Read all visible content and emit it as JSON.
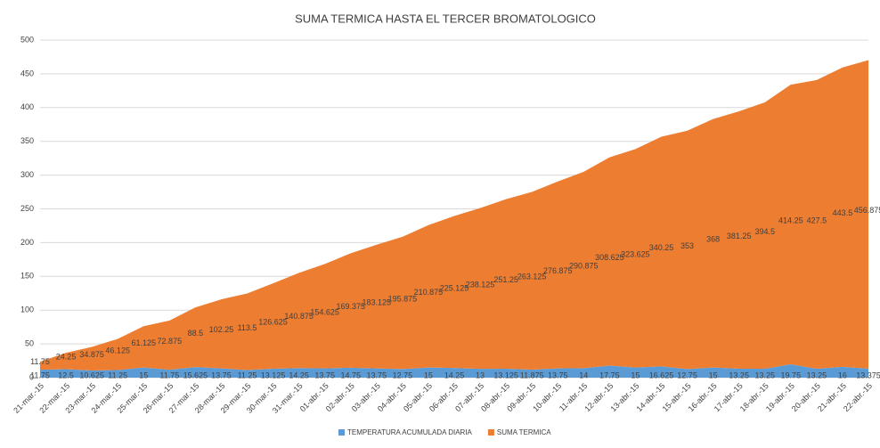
{
  "chart_data": {
    "type": "stacked_area",
    "title": "SUMA TERMICA HASTA EL TERCER BROMATOLOGICO",
    "categories": [
      "21-mar.-15",
      "22-mar.-15",
      "23-mar.-15",
      "24-mar.-15",
      "25-mar.-15",
      "26-mar.-15",
      "27-mar.-15",
      "28-mar.-15",
      "29-mar.-15",
      "30-mar.-15",
      "31-mar.-15",
      "01-abr.-15",
      "02-abr.-15",
      "03-abr.-15",
      "04-abr.-15",
      "05-abr.-15",
      "06-abr.-15",
      "07-abr.-15",
      "08-abr.-15",
      "09-abr.-15",
      "10-abr.-15",
      "11-abr.-15",
      "12-abr.-15",
      "13-abr.-15",
      "14-abr.-15",
      "15-abr.-15",
      "16-abr.-15",
      "17-abr.-15",
      "18-abr.-15",
      "19-abr.-15",
      "20-abr.-15",
      "21-abr.-15",
      "22-abr.-15"
    ],
    "series": [
      {
        "name": "TEMPERATURA ACUMULADA DIARIA",
        "color": "#5b9bd5",
        "values": [
          11.75,
          12.5,
          10.625,
          11.25,
          15,
          11.75,
          15.625,
          13.75,
          11.25,
          13.125,
          14.25,
          13.75,
          14.75,
          13.75,
          12.75,
          15,
          14.25,
          13,
          13.125,
          11.875,
          13.75,
          14,
          17.75,
          15,
          16.625,
          12.75,
          15,
          13.25,
          13.25,
          19.75,
          13.25,
          16,
          13.375
        ]
      },
      {
        "name": "SUMA TERMICA",
        "color": "#ed7d31",
        "values": [
          11.75,
          24.25,
          34.875,
          46.125,
          61.125,
          72.875,
          88.5,
          102.25,
          113.5,
          126.625,
          140.875,
          154.625,
          169.375,
          183.125,
          195.875,
          210.875,
          225.125,
          238.125,
          251.25,
          263.125,
          276.875,
          290.875,
          308.625,
          323.625,
          340.25,
          353,
          368,
          381.25,
          394.5,
          414.25,
          427.5,
          443.5,
          456.875
        ]
      }
    ],
    "ylim": [
      0,
      500
    ],
    "yticks": [
      0,
      50,
      100,
      150,
      200,
      250,
      300,
      350,
      400,
      450,
      500
    ],
    "grid": true,
    "legend": "bottom"
  }
}
